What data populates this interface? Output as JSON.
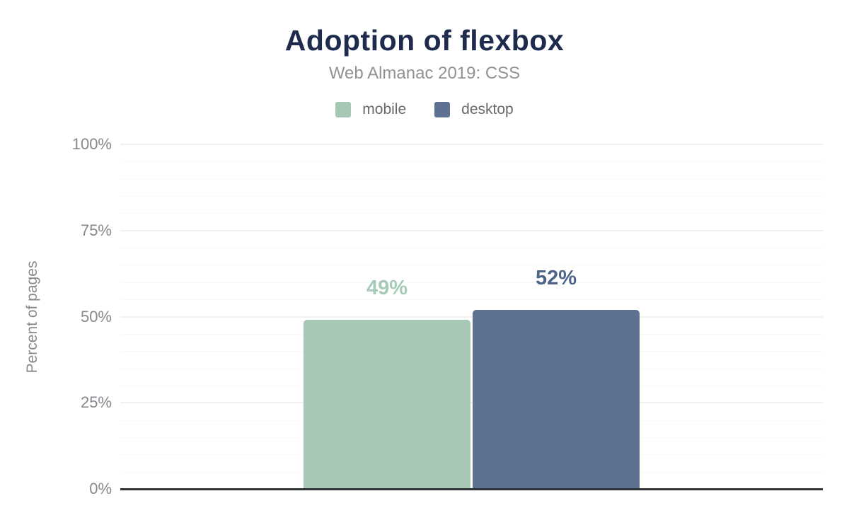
{
  "title": "Adoption of flexbox",
  "subtitle": "Web Almanac 2019: CSS",
  "legend": {
    "items": [
      {
        "label": "mobile",
        "color": "#a6c8b5"
      },
      {
        "label": "desktop",
        "color": "#5e7190"
      }
    ]
  },
  "chart_data": {
    "type": "bar",
    "title": "Adoption of flexbox",
    "subtitle": "Web Almanac 2019: CSS",
    "categories": [
      "mobile",
      "desktop"
    ],
    "series": [
      {
        "name": "mobile",
        "value": 49,
        "data_label": "49%",
        "bar_color": "#a6c8b5",
        "label_color": "#a5cab7"
      },
      {
        "name": "desktop",
        "value": 52,
        "data_label": "52%",
        "bar_color": "#5e7190",
        "label_color": "#4d6488"
      }
    ],
    "xlabel": "",
    "ylabel": "Percent of pages",
    "ylim": [
      0,
      100
    ],
    "yticks": [
      {
        "value": 0,
        "label": "0%"
      },
      {
        "value": 25,
        "label": "25%"
      },
      {
        "value": 50,
        "label": "50%"
      },
      {
        "value": 75,
        "label": "75%"
      },
      {
        "value": 100,
        "label": "100%"
      }
    ],
    "minor_gridline_step": 5,
    "grid": "on",
    "legend_position": "top"
  },
  "colors": {
    "background": "#ffffff",
    "title": "#1f2b4d",
    "subtitle": "#909396",
    "axis_label": "#85888d",
    "legend_text": "#66696d",
    "axis_line": "#313236",
    "grid_major": "#f0f0f0",
    "grid_minor": "#f8f8f8"
  }
}
